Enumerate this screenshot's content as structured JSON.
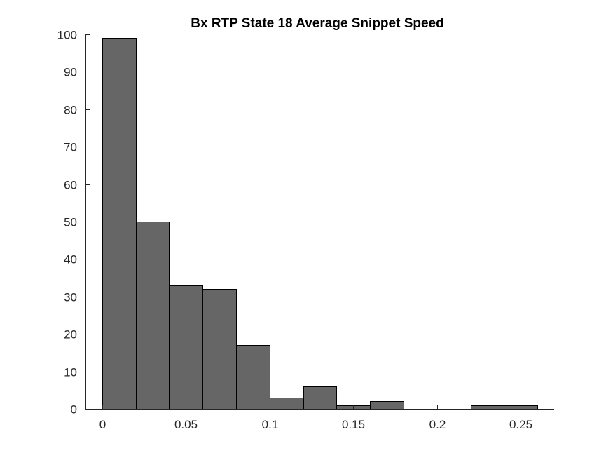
{
  "chart_data": {
    "type": "bar",
    "title": "Bx  RTP State 18 Average Snippet Speed",
    "xlabel": "",
    "ylabel": "",
    "xlim": [
      -0.01,
      0.27
    ],
    "ylim": [
      0,
      100
    ],
    "bin_width": 0.02,
    "bins": [
      {
        "start": 0.0,
        "end": 0.02,
        "count": 99
      },
      {
        "start": 0.02,
        "end": 0.04,
        "count": 50
      },
      {
        "start": 0.04,
        "end": 0.06,
        "count": 33
      },
      {
        "start": 0.06,
        "end": 0.08,
        "count": 32
      },
      {
        "start": 0.08,
        "end": 0.1,
        "count": 17
      },
      {
        "start": 0.1,
        "end": 0.12,
        "count": 3
      },
      {
        "start": 0.12,
        "end": 0.14,
        "count": 6
      },
      {
        "start": 0.14,
        "end": 0.15,
        "count": 1
      },
      {
        "start": 0.15,
        "end": 0.16,
        "count": 1
      },
      {
        "start": 0.16,
        "end": 0.18,
        "count": 2
      },
      {
        "start": 0.18,
        "end": 0.2,
        "count": 0
      },
      {
        "start": 0.2,
        "end": 0.22,
        "count": 0
      },
      {
        "start": 0.22,
        "end": 0.24,
        "count": 1
      },
      {
        "start": 0.24,
        "end": 0.25,
        "count": 1
      },
      {
        "start": 0.25,
        "end": 0.26,
        "count": 1
      }
    ],
    "xticks": [
      0,
      0.05,
      0.1,
      0.15,
      0.2,
      0.25
    ],
    "xtick_labels": [
      "0",
      "0.05",
      "0.1",
      "0.15",
      "0.2",
      "0.25"
    ],
    "yticks": [
      0,
      10,
      20,
      30,
      40,
      50,
      60,
      70,
      80,
      90,
      100
    ],
    "ytick_labels": [
      "0",
      "10",
      "20",
      "30",
      "40",
      "50",
      "60",
      "70",
      "80",
      "90",
      "100"
    ],
    "grid": false,
    "legend": "none",
    "colors": {
      "bar_fill": "#666666",
      "bar_edge": "#000000",
      "axis": "#262626"
    }
  }
}
